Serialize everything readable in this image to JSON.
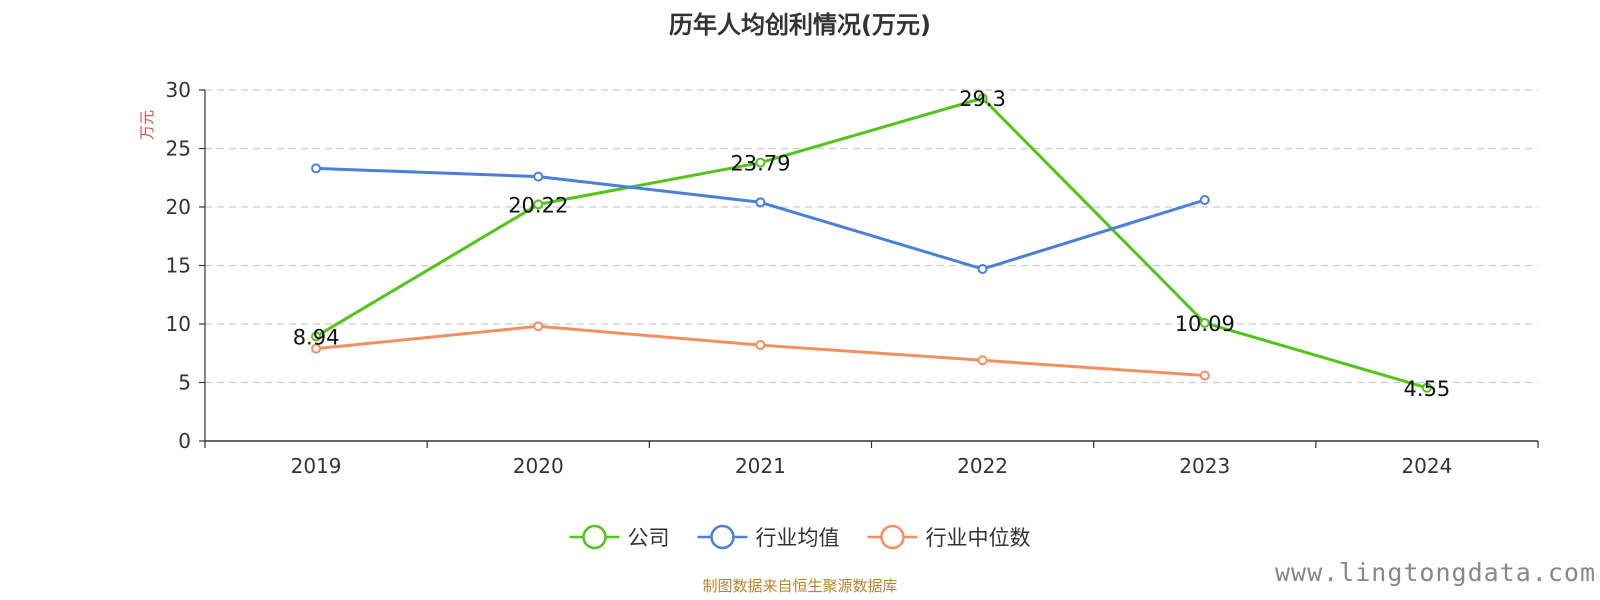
{
  "chart_data": {
    "type": "line",
    "title": "历年人均创利情况(万元)",
    "ylabel": "万元",
    "categories": [
      "2019",
      "2020",
      "2021",
      "2022",
      "2023",
      "2024"
    ],
    "ylim": [
      0,
      30
    ],
    "yticks": [
      0,
      5,
      10,
      15,
      20,
      25,
      30
    ],
    "grid": true,
    "legend_position": "bottom",
    "series": [
      {
        "name": "公司",
        "color": "#52c41a",
        "values": [
          8.94,
          20.22,
          23.79,
          29.3,
          10.09,
          4.55
        ],
        "labels": [
          "8.94",
          "20.22",
          "23.79",
          "29.3",
          "10.09",
          "4.55"
        ],
        "show_labels": true
      },
      {
        "name": "行业均值",
        "color": "#4a7fdb",
        "values": [
          23.3,
          22.6,
          20.4,
          14.7,
          20.6,
          null
        ],
        "show_labels": false
      },
      {
        "name": "行业中位数",
        "color": "#f39060",
        "values": [
          7.9,
          9.8,
          8.2,
          6.9,
          5.6,
          null
        ],
        "show_labels": false
      }
    ]
  },
  "source_text": "制图数据来自恒生聚源数据库",
  "watermark_text": "www.lingtongdata.com"
}
